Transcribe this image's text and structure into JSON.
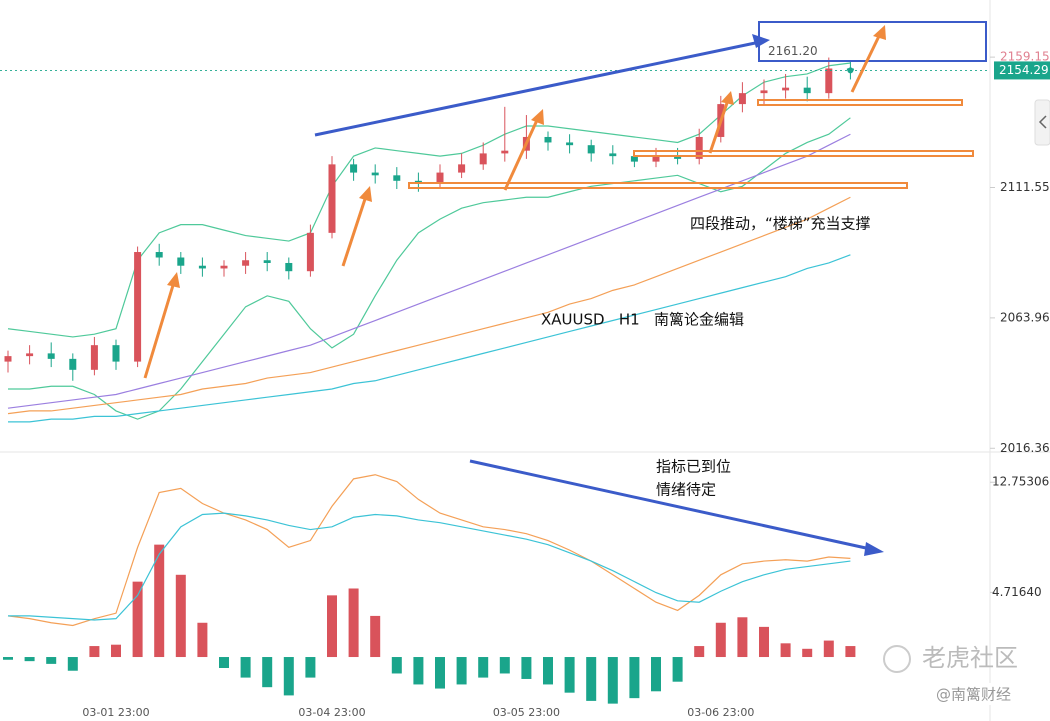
{
  "chart_data": [
    {
      "type": "candlestick",
      "categories": [
        null,
        null,
        null,
        null,
        null,
        "03-01 23:00",
        null,
        null,
        null,
        null,
        null,
        null,
        null,
        null,
        null,
        "03-04 23:00",
        null,
        null,
        null,
        null,
        null,
        null,
        null,
        null,
        "03-05 23:00",
        null,
        null,
        null,
        null,
        null,
        null,
        null,
        null,
        "03-06 23:00",
        null,
        null,
        null,
        null,
        null,
        null
      ],
      "open": [
        2048,
        2050,
        2051,
        2049,
        2045,
        2054,
        2048,
        2088,
        2086,
        2083,
        2082,
        2083,
        2085,
        2084,
        2081,
        2095,
        2120,
        2117,
        2116,
        2114,
        2113,
        2117,
        2120,
        2124,
        2125,
        2130,
        2128,
        2127,
        2124,
        2123,
        2121,
        2123,
        2122,
        2130,
        2142,
        2146,
        2147,
        2148,
        2146,
        2155
      ],
      "high": [
        2052,
        2054,
        2055,
        2051,
        2057,
        2056,
        2090,
        2091,
        2088,
        2086,
        2085,
        2088,
        2088,
        2086,
        2098,
        2123,
        2122,
        2120,
        2119,
        2117,
        2120,
        2124,
        2128,
        2141,
        2138,
        2132,
        2131,
        2129,
        2127,
        2125,
        2126,
        2126,
        2133,
        2145,
        2150,
        2151,
        2153,
        2152,
        2159,
        2158
      ],
      "low": [
        2044,
        2047,
        2046,
        2041,
        2043,
        2045,
        2046,
        2083,
        2080,
        2079,
        2079,
        2080,
        2081,
        2078,
        2079,
        2093,
        2114,
        2113,
        2111,
        2110,
        2111,
        2115,
        2118,
        2121,
        2122,
        2125,
        2124,
        2121,
        2120,
        2119,
        2119,
        2120,
        2120,
        2128,
        2139,
        2142,
        2144,
        2143,
        2144,
        2151
      ],
      "close": [
        2050,
        2051,
        2049,
        2045,
        2054,
        2048,
        2088,
        2086,
        2083,
        2082,
        2083,
        2085,
        2084,
        2081,
        2095,
        2120,
        2117,
        2116,
        2114,
        2113,
        2117,
        2120,
        2124,
        2125,
        2130,
        2128,
        2127,
        2124,
        2123,
        2121,
        2123,
        2122,
        2130,
        2142,
        2146,
        2147,
        2148,
        2146,
        2155,
        2154.29
      ],
      "up_color": "#d9535b",
      "down_color": "#1aa58b",
      "series": [
        {
          "color": "#4fc99a",
          "values": [
            2060,
            2059,
            2058,
            2057,
            2058,
            2060,
            2085,
            2095,
            2098,
            2098,
            2096,
            2094,
            2093,
            2092,
            2095,
            2112,
            2123,
            2126,
            2125,
            2124,
            2123,
            2124,
            2127,
            2131,
            2134,
            2134,
            2133,
            2132,
            2131,
            2130,
            2129,
            2128,
            2131,
            2138,
            2145,
            2150,
            2152,
            2153,
            2156,
            2157
          ]
        },
        {
          "color": "#4fc99a",
          "values": [
            2038,
            2038,
            2039,
            2039,
            2036,
            2030,
            2027,
            2030,
            2038,
            2048,
            2058,
            2068,
            2072,
            2070,
            2060,
            2053,
            2058,
            2072,
            2085,
            2095,
            2100,
            2104,
            2106,
            2107,
            2108,
            2108,
            2110,
            2112,
            2113,
            2114,
            2115,
            2116,
            2113,
            2110,
            2112,
            2118,
            2124,
            2128,
            2131,
            2137
          ]
        },
        {
          "color": "#9b7fe0",
          "values": [
            2031,
            2032,
            2033,
            2034,
            2035,
            2036,
            2038,
            2040,
            2042,
            2044,
            2046,
            2048,
            2050,
            2052,
            2054,
            2057,
            2060,
            2063,
            2066,
            2069,
            2072,
            2075,
            2078,
            2081,
            2084,
            2087,
            2090,
            2093,
            2096,
            2099,
            2102,
            2105,
            2108,
            2111,
            2114,
            2117,
            2120,
            2123,
            2127,
            2131
          ]
        },
        {
          "color": "#f4a057",
          "values": [
            2029,
            2030,
            2030,
            2031,
            2032,
            2033,
            2034,
            2035,
            2036,
            2038,
            2039,
            2040,
            2042,
            2043,
            2044,
            2046,
            2048,
            2050,
            2052,
            2054,
            2056,
            2058,
            2060,
            2062,
            2064,
            2066,
            2069,
            2071,
            2074,
            2076,
            2079,
            2082,
            2085,
            2088,
            2091,
            2094,
            2097,
            2100,
            2104,
            2108
          ]
        },
        {
          "color": "#3cc3d6",
          "values": [
            2026,
            2026,
            2027,
            2027,
            2028,
            2028,
            2029,
            2030,
            2031,
            2032,
            2033,
            2034,
            2035,
            2036,
            2037,
            2038,
            2040,
            2041,
            2043,
            2045,
            2047,
            2049,
            2051,
            2053,
            2055,
            2057,
            2059,
            2061,
            2063,
            2065,
            2067,
            2069,
            2071,
            2073,
            2075,
            2077,
            2079,
            2082,
            2084,
            2087
          ]
        }
      ],
      "ylim": [
        2015,
        2180
      ],
      "yticks": [
        2159.15,
        2111.55,
        2063.96,
        2016.36
      ],
      "high_label": {
        "value": 2161.2,
        "label": "2161.20"
      }
    },
    {
      "type": "macd",
      "values": [
        -0.2,
        -0.3,
        -0.5,
        -1.0,
        0.8,
        0.9,
        5.5,
        8.2,
        6.0,
        2.5,
        -0.8,
        -1.5,
        -2.2,
        -2.8,
        -1.5,
        4.5,
        5.0,
        3.0,
        -1.2,
        -2.0,
        -2.3,
        -2.0,
        -1.5,
        -1.2,
        -1.6,
        -2.0,
        -2.6,
        -3.2,
        -3.4,
        -3.0,
        -2.5,
        -1.8,
        0.8,
        2.5,
        2.9,
        2.2,
        1.0,
        0.6,
        1.2,
        0.8
      ],
      "up_color": "#d9535b",
      "down_color": "#1aa58b",
      "series": [
        {
          "color": "#f4a057",
          "values": [
            3.0,
            2.8,
            2.5,
            2.3,
            2.8,
            3.2,
            8.0,
            12.0,
            12.3,
            11.2,
            10.5,
            10.0,
            9.3,
            8.0,
            8.5,
            11.0,
            13.0,
            13.3,
            12.8,
            11.5,
            10.5,
            10.0,
            9.5,
            9.3,
            9.0,
            8.5,
            7.8,
            7.0,
            6.0,
            5.0,
            4.0,
            3.4,
            4.5,
            6.0,
            6.8,
            7.0,
            7.1,
            7.0,
            7.3,
            7.2
          ]
        },
        {
          "color": "#3cc3d6",
          "values": [
            3.0,
            3.0,
            2.9,
            2.8,
            2.7,
            2.8,
            4.5,
            7.5,
            9.5,
            10.4,
            10.5,
            10.3,
            10.0,
            9.6,
            9.3,
            9.5,
            10.2,
            10.4,
            10.3,
            10.0,
            9.8,
            9.5,
            9.2,
            8.9,
            8.6,
            8.2,
            7.6,
            7.0,
            6.3,
            5.5,
            4.7,
            4.1,
            4.0,
            4.8,
            5.5,
            6.0,
            6.4,
            6.6,
            6.8,
            7.0
          ]
        }
      ],
      "ylim": [
        -3.5,
        14.74
      ],
      "yticks": [
        12.75306,
        {
          "value": 4.7164,
          "label": "4.71640"
        }
      ]
    }
  ],
  "annotations": {
    "support_note": "四段推动，“楼梯”充当支撑",
    "symbol_note": "XAUUSD   H1   南篱论金编辑",
    "indicator_note": "指标已到位",
    "mood_note": "情绪待定"
  },
  "watermarks": {
    "community": "老虎社区",
    "author": "@南篱财经"
  }
}
